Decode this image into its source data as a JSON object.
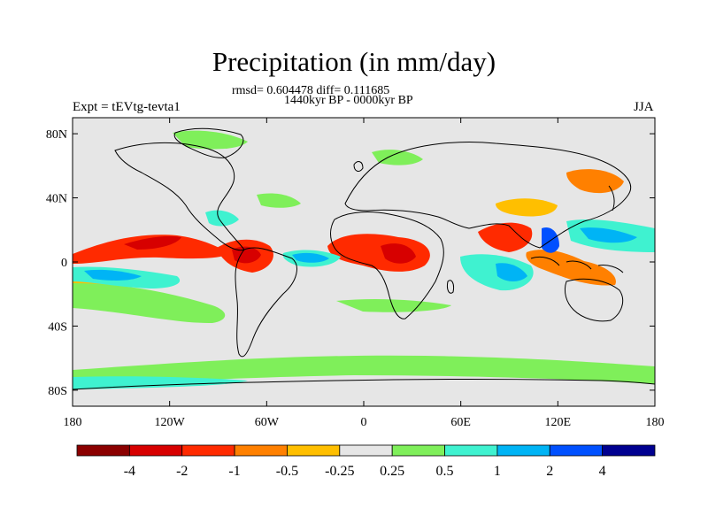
{
  "title": "Precipitation (in mm/day)",
  "stats_line": "rmsd= 0.604478 diff= 0.111685",
  "period_line": "1440kyr BP - 0000kyr BP",
  "experiment_label": "Expt = tEVtg-tevta1",
  "season_label": "JJA",
  "map": {
    "lon_ticks": [
      "180",
      "120W",
      "60W",
      "0",
      "60E",
      "120E",
      "180"
    ],
    "lat_ticks": [
      "80N",
      "40N",
      "0",
      "40S",
      "80S"
    ],
    "lat_tick_values": [
      80,
      40,
      0,
      -40,
      -80
    ],
    "background_color": "#e6e6e6",
    "coastline_color": "#000000"
  },
  "colorbar": {
    "labels": [
      "-4",
      "-2",
      "-1",
      "-0.5",
      "-0.25",
      "0.25",
      "0.5",
      "1",
      "2",
      "4"
    ],
    "colors": [
      "#8b0000",
      "#d70000",
      "#ff2a00",
      "#ff8000",
      "#ffbf00",
      "#e6e6e6",
      "#7fef5a",
      "#3ff2d0",
      "#00b4f5",
      "#0050ff",
      "#000090"
    ]
  }
}
